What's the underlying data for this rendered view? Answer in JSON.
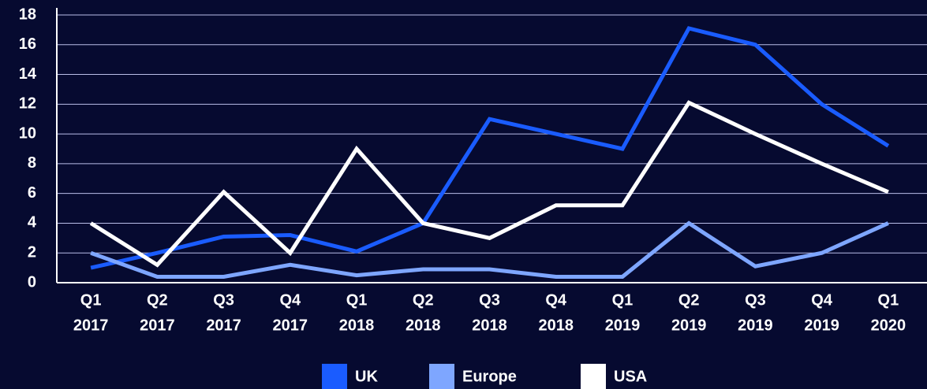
{
  "chart_data": {
    "type": "line",
    "categories": [
      [
        "Q1",
        "2017"
      ],
      [
        "Q2",
        "2017"
      ],
      [
        "Q3",
        "2017"
      ],
      [
        "Q4",
        "2017"
      ],
      [
        "Q1",
        "2018"
      ],
      [
        "Q2",
        "2018"
      ],
      [
        "Q3",
        "2018"
      ],
      [
        "Q4",
        "2018"
      ],
      [
        "Q1",
        "2019"
      ],
      [
        "Q2",
        "2019"
      ],
      [
        "Q3",
        "2019"
      ],
      [
        "Q4",
        "2019"
      ],
      [
        "Q1",
        "2020"
      ]
    ],
    "series": [
      {
        "name": "UK",
        "color": "#1a5cff",
        "values": [
          1,
          2,
          3.1,
          3.2,
          2.1,
          4,
          11,
          10,
          9,
          17.1,
          16,
          12,
          9.2
        ]
      },
      {
        "name": "Europe",
        "color": "#7ea6ff",
        "values": [
          2,
          0.4,
          0.4,
          1.2,
          0.5,
          0.9,
          0.9,
          0.4,
          0.4,
          4,
          1.1,
          2,
          4
        ]
      },
      {
        "name": "USA",
        "color": "#ffffff",
        "values": [
          4,
          1.2,
          6.1,
          2,
          9,
          4,
          3,
          5.2,
          5.2,
          12.1,
          10,
          8,
          6.1
        ]
      }
    ],
    "ylim": [
      0,
      18
    ],
    "yticks": [
      0,
      2,
      4,
      6,
      8,
      10,
      12,
      14,
      16,
      18
    ],
    "grid": true,
    "legend": "bottom"
  }
}
